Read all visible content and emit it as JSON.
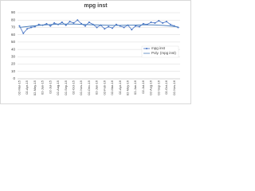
{
  "chart_data": {
    "type": "line",
    "title": "mpg inst",
    "categories": [
      "02-Mar-15",
      null,
      "02-Apr-15",
      null,
      "02-May-15",
      null,
      "02-Jun-15",
      null,
      "02-Jul-15",
      null,
      "02-Aug-15",
      null,
      "02-Sep-15",
      null,
      "02-Oct-15",
      null,
      "02-Nov-15",
      null,
      "02-Dec-15",
      null,
      "02-Jan-16",
      null,
      "02-Feb-16",
      null,
      "02-Mar-16",
      null,
      "02-Apr-16",
      null,
      "02-May-16",
      null,
      "02-Jun-16",
      null,
      "02-Jul-16",
      null,
      "02-Aug-16",
      null,
      "02-Sep-16",
      null,
      "02-Oct-16",
      null,
      "02-Nov-16",
      null
    ],
    "series": [
      {
        "name": "mpg inst",
        "color": "#4472c4",
        "markers": true,
        "values": [
          72,
          62,
          68,
          70,
          71,
          74,
          73,
          75,
          72,
          76,
          74,
          77,
          73,
          78,
          76,
          80,
          75,
          72,
          77,
          74,
          70,
          73,
          68,
          71,
          69,
          74,
          72,
          70,
          73,
          67,
          72,
          71,
          75,
          74,
          77,
          76,
          79,
          76,
          78,
          74,
          72,
          70
        ]
      },
      {
        "name": "Poly. (mpg inst)",
        "color": "#4f81bd",
        "markers": false,
        "values": [
          70,
          70.6,
          71.2,
          71.8,
          72.3,
          72.8,
          73.2,
          73.6,
          73.9,
          74.2,
          74.4,
          74.5,
          74.6,
          74.6,
          74.5,
          74.4,
          74.2,
          74,
          73.8,
          73.6,
          73.4,
          73.2,
          73,
          72.9,
          72.8,
          72.8,
          72.8,
          72.9,
          73,
          73.1,
          73.2,
          73.3,
          73.4,
          73.4,
          73.4,
          73.3,
          73.1,
          72.8,
          72.4,
          71.9,
          71.3,
          70.6
        ]
      }
    ],
    "ylim": [
      0,
      90
    ],
    "yticks": [
      0,
      10,
      20,
      30,
      40,
      50,
      60,
      70,
      80,
      90
    ],
    "grid": true,
    "legend": "right"
  }
}
